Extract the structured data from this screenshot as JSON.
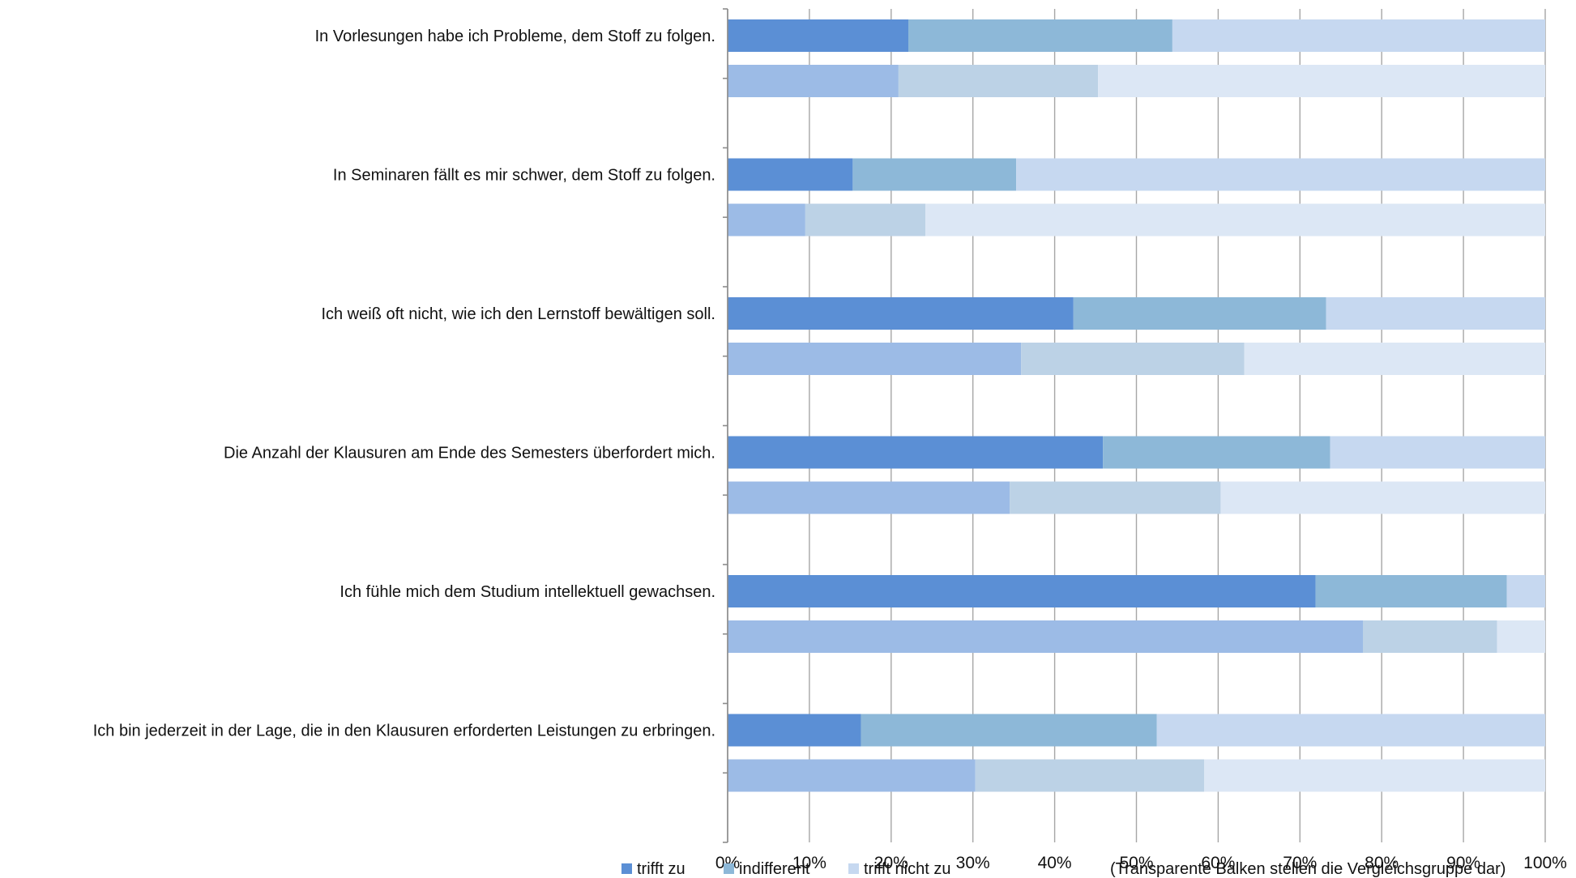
{
  "chart_data": {
    "type": "bar",
    "orientation": "horizontal",
    "stacked": "percent",
    "categories": [
      "In Vorlesungen habe ich Probleme, dem Stoff zu folgen.",
      "In Seminaren fällt es mir schwer, dem Stoff zu folgen.",
      "Ich weiß oft nicht, wie ich den Lernstoff bewältigen soll.",
      "Die Anzahl der Klausuren am Ende des Semesters überfordert mich.",
      "Ich fühle mich dem Studium intellektuell gewachsen.",
      "Ich bin jederzeit in der Lage, die in den Klausuren erforderten Leistungen zu erbringen."
    ],
    "groups": [
      {
        "role": "main",
        "series": [
          {
            "name": "trifft zu",
            "values": [
              22.1,
              15.3,
              42.3,
              45.9,
              71.9,
              16.3
            ]
          },
          {
            "name": "indifferent",
            "values": [
              32.3,
              20.0,
              30.9,
              27.8,
              23.4,
              36.2
            ]
          },
          {
            "name": "trifft nicht zu",
            "values": [
              45.6,
              64.7,
              26.8,
              26.3,
              4.7,
              47.5
            ]
          }
        ]
      },
      {
        "role": "comparison",
        "series": [
          {
            "name": "trifft zu",
            "values": [
              20.9,
              9.5,
              35.9,
              34.5,
              77.7,
              30.3
            ]
          },
          {
            "name": "indifferent",
            "values": [
              24.4,
              14.7,
              27.3,
              25.8,
              16.4,
              28.0
            ]
          },
          {
            "name": "trifft nicht zu",
            "values": [
              54.7,
              75.8,
              36.8,
              39.7,
              5.9,
              41.7
            ]
          }
        ]
      }
    ],
    "xlim": [
      0,
      100
    ],
    "xticks": [
      "0%",
      "10%",
      "20%",
      "30%",
      "40%",
      "50%",
      "60%",
      "70%",
      "80%",
      "90%",
      "100%"
    ],
    "grid": "vertical",
    "legend": {
      "placement": "bottom-left",
      "entries": [
        "trifft zu",
        "indifferent",
        "trifft nicht zu"
      ]
    },
    "note": "(Transparente Balken stellen die Vergleichsgruppe dar)",
    "colors": {
      "main": [
        "#5B8FD5",
        "#8DB8D8",
        "#C6D8F0"
      ],
      "comparison": [
        "#9CBBE6",
        "#BCD2E6",
        "#DCE7F5"
      ],
      "grid": "#A6A6A6",
      "axis": "#8C8C8C"
    }
  }
}
